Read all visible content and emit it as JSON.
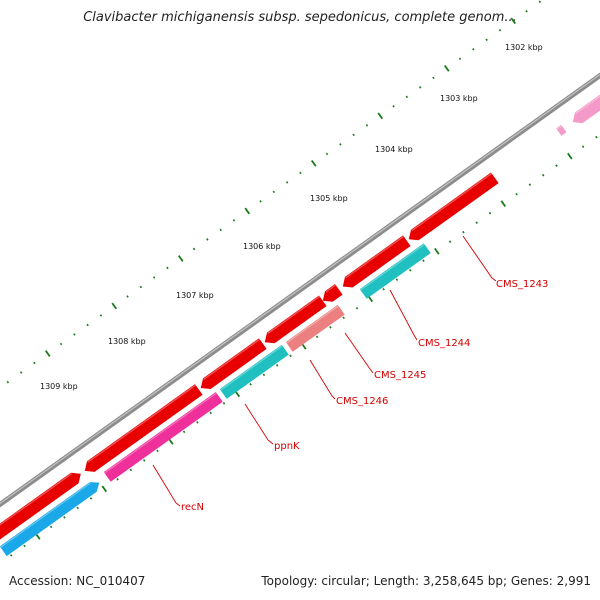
{
  "title": "Clavibacter michiganensis subsp. sepedonicus, complete genom...",
  "footer": {
    "accession": "Accession: NC_010407",
    "summary": "Topology: circular; Length: 3,258,645 bp; Genes: 2,991"
  },
  "colors": {
    "backbone": "#8c8c8c",
    "tick": "#1a7a1a",
    "gene_red": "#e80000",
    "gene_cyan": "#20c0c0",
    "gene_blue": "#1aa8e8",
    "gene_magenta": "#f0309a",
    "gene_salmon": "#ec8080",
    "gene_pink": "#f49ac8",
    "label": "#d40000"
  },
  "kbp_labels": [
    "1302 kbp",
    "1303 kbp",
    "1304 kbp",
    "1305 kbp",
    "1306 kbp",
    "1307 kbp",
    "1308 kbp",
    "1309 kbp"
  ],
  "gene_labels": [
    "CMS_1243",
    "CMS_1244",
    "CMS_1245",
    "CMS_1246",
    "ppnK",
    "recN"
  ]
}
